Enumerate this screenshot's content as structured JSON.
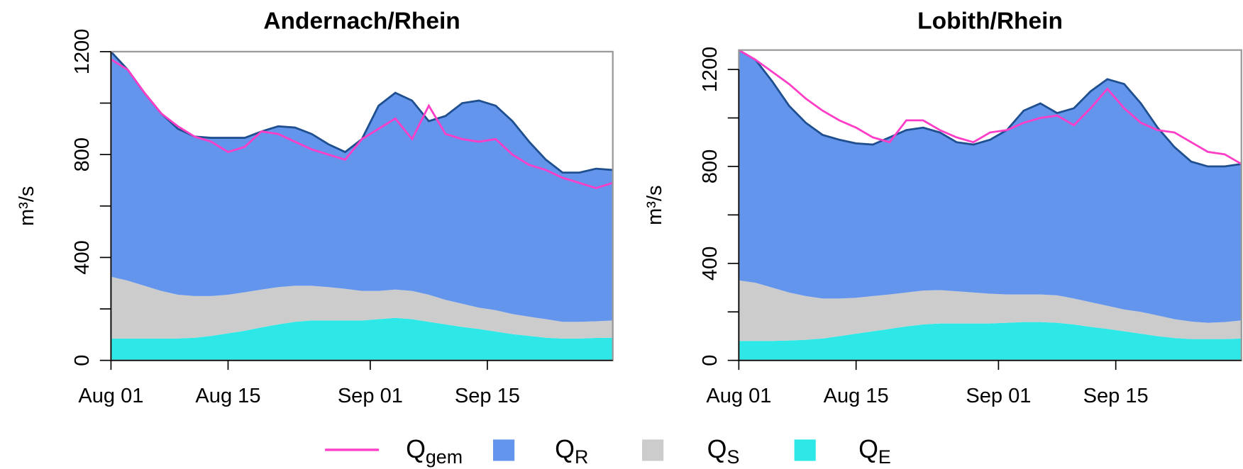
{
  "chart_data": [
    {
      "type": "area",
      "title": "Andernach/Rhein",
      "ylabel": "m³/s",
      "x": [
        0,
        2,
        4,
        6,
        8,
        10,
        12,
        14,
        16,
        18,
        20,
        22,
        24,
        26,
        28,
        30,
        32,
        34,
        36,
        38,
        40,
        42,
        44,
        46,
        48,
        50,
        52,
        54,
        56,
        58,
        60
      ],
      "xlim": [
        0,
        60
      ],
      "xticks": [
        {
          "value": 0,
          "label": "Aug 01"
        },
        {
          "value": 14,
          "label": "Aug 15"
        },
        {
          "value": 31,
          "label": "Sep 01"
        },
        {
          "value": 45,
          "label": "Sep 15"
        }
      ],
      "ylim": [
        0,
        1200
      ],
      "yticks": [
        0,
        400,
        800,
        1200
      ],
      "yminorticks": [
        200,
        600,
        1000
      ],
      "series": [
        {
          "kind": "line",
          "color": "#ff3ec8",
          "values": [
            1170,
            1130,
            1040,
            960,
            910,
            870,
            850,
            810,
            830,
            890,
            880,
            850,
            820,
            800,
            780,
            860,
            900,
            940,
            860,
            990,
            880,
            860,
            850,
            860,
            800,
            760,
            740,
            710,
            690,
            670,
            690
          ]
        },
        {
          "kind": "area",
          "color": "#6495ed",
          "outline": "#1f4f8f",
          "values": [
            875,
            820,
            750,
            690,
            645,
            620,
            615,
            610,
            600,
            615,
            625,
            615,
            590,
            555,
            532,
            590,
            720,
            765,
            740,
            675,
            715,
            780,
            805,
            795,
            750,
            680,
            620,
            580,
            580,
            593,
            585
          ]
        },
        {
          "kind": "area",
          "color": "#cccccc",
          "values": [
            240,
            225,
            205,
            185,
            170,
            162,
            155,
            150,
            150,
            147,
            145,
            140,
            135,
            130,
            123,
            115,
            110,
            110,
            110,
            105,
            95,
            90,
            83,
            83,
            78,
            75,
            72,
            65,
            65,
            65,
            67
          ]
        },
        {
          "kind": "area",
          "color": "#2ee8e8",
          "values": [
            85,
            85,
            85,
            85,
            85,
            88,
            95,
            105,
            115,
            128,
            140,
            150,
            155,
            155,
            155,
            155,
            160,
            165,
            160,
            150,
            140,
            130,
            122,
            112,
            102,
            95,
            88,
            85,
            85,
            87,
            88
          ]
        }
      ]
    },
    {
      "type": "area",
      "title": "Lobith/Rhein",
      "ylabel": "m³/s",
      "x": [
        0,
        2,
        4,
        6,
        8,
        10,
        12,
        14,
        16,
        18,
        20,
        22,
        24,
        26,
        28,
        30,
        32,
        34,
        36,
        38,
        40,
        42,
        44,
        46,
        48,
        50,
        52,
        54,
        56,
        58,
        60
      ],
      "xlim": [
        0,
        60
      ],
      "xticks": [
        {
          "value": 0,
          "label": "Aug 01"
        },
        {
          "value": 14,
          "label": "Aug 15"
        },
        {
          "value": 31,
          "label": "Sep 01"
        },
        {
          "value": 45,
          "label": "Sep 15"
        }
      ],
      "ylim": [
        0,
        1280
      ],
      "yticks": [
        0,
        400,
        800,
        1200
      ],
      "yminorticks": [
        200,
        600,
        1000
      ],
      "series": [
        {
          "kind": "line",
          "color": "#ff3ec8",
          "values": [
            1280,
            1240,
            1190,
            1140,
            1080,
            1030,
            990,
            960,
            920,
            900,
            990,
            990,
            950,
            920,
            900,
            940,
            950,
            980,
            1000,
            1010,
            970,
            1040,
            1120,
            1040,
            980,
            950,
            940,
            900,
            860,
            850,
            810
          ]
        },
        {
          "kind": "area",
          "color": "#6495ed",
          "outline": "#1f4f8f",
          "values": [
            950,
            920,
            850,
            770,
            715,
            675,
            655,
            637,
            625,
            648,
            670,
            672,
            650,
            615,
            610,
            635,
            678,
            758,
            788,
            752,
            785,
            870,
            935,
            930,
            860,
            775,
            710,
            660,
            645,
            642,
            645
          ]
        },
        {
          "kind": "area",
          "color": "#cccccc",
          "values": [
            250,
            240,
            220,
            198,
            180,
            165,
            155,
            148,
            145,
            142,
            140,
            140,
            138,
            133,
            128,
            123,
            117,
            114,
            114,
            113,
            107,
            102,
            95,
            90,
            90,
            85,
            78,
            72,
            67,
            70,
            75
          ]
        },
        {
          "kind": "area",
          "color": "#2ee8e8",
          "values": [
            80,
            80,
            80,
            82,
            85,
            90,
            100,
            110,
            120,
            130,
            140,
            148,
            152,
            152,
            152,
            152,
            155,
            158,
            158,
            155,
            148,
            138,
            130,
            120,
            110,
            100,
            92,
            88,
            88,
            88,
            90
          ]
        }
      ]
    }
  ],
  "legend": {
    "items": [
      {
        "name": "Q",
        "sub": "gem",
        "kind": "line",
        "color": "#ff3ec8"
      },
      {
        "name": "Q",
        "sub": "R",
        "kind": "area",
        "color": "#6495ed"
      },
      {
        "name": "Q",
        "sub": "S",
        "kind": "area",
        "color": "#cccccc"
      },
      {
        "name": "Q",
        "sub": "E",
        "kind": "area",
        "color": "#2ee8e8"
      }
    ]
  }
}
